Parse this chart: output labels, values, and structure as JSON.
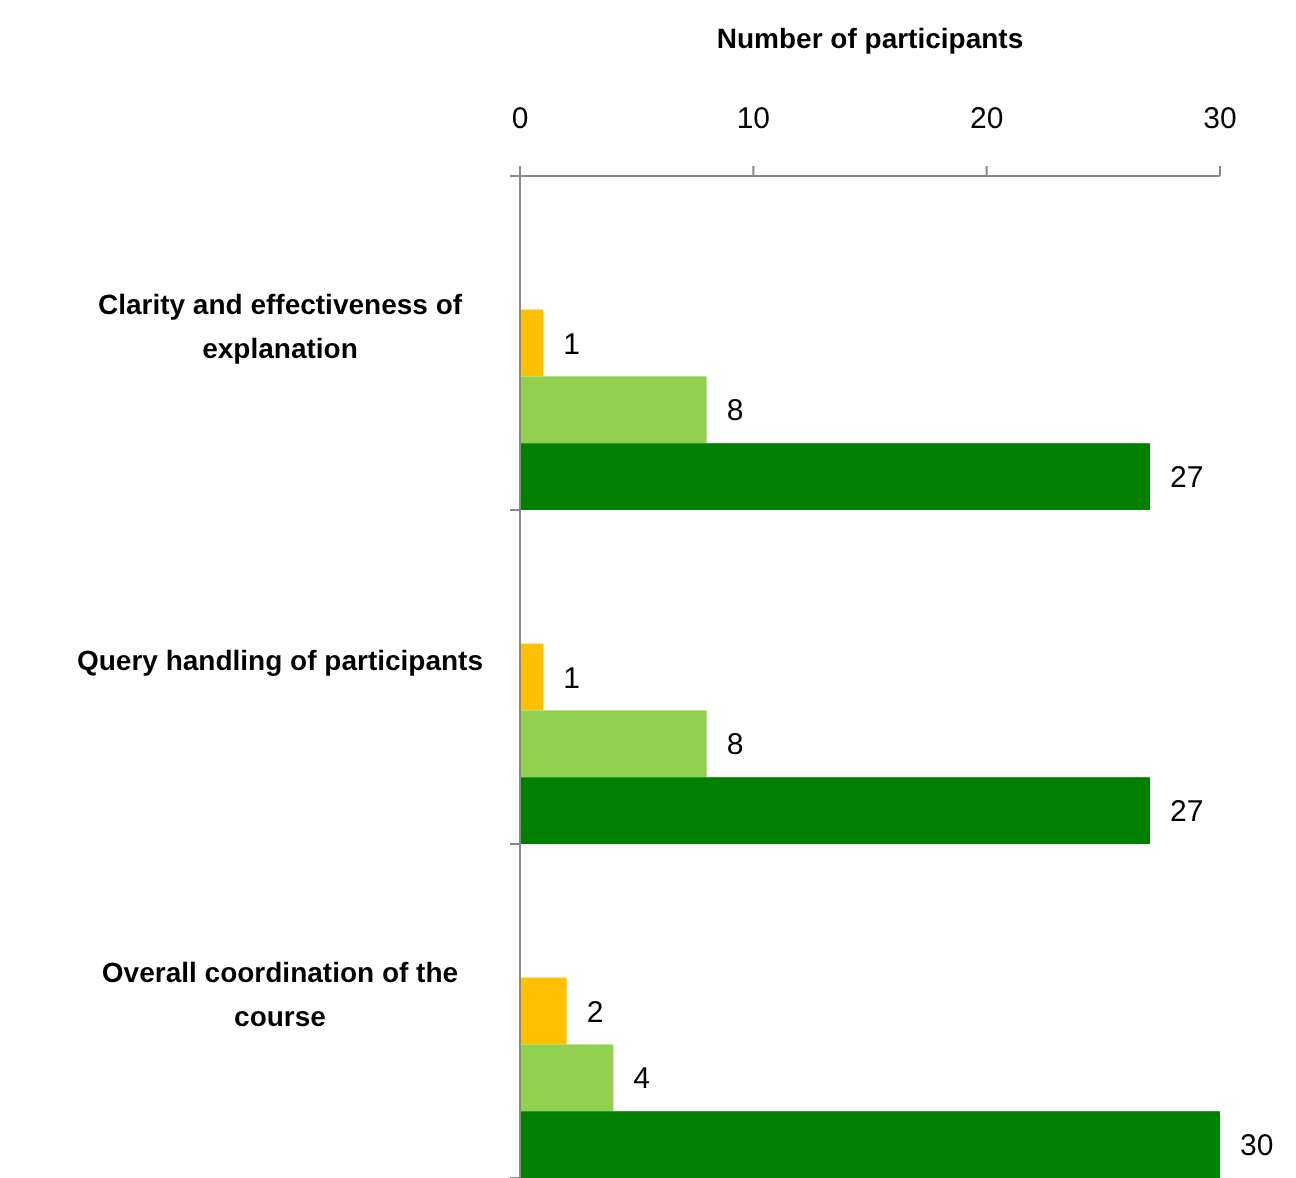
{
  "chart_data": {
    "type": "bar",
    "orientation": "horizontal",
    "xlabel": "Number of participants",
    "categories": [
      "Clarity and effectiveness of explanation",
      "Query handling of participants",
      "Overall coordination of the course"
    ],
    "series": [
      {
        "color": "#ffc000",
        "values": [
          1,
          1,
          2
        ]
      },
      {
        "color": "#92d050",
        "values": [
          8,
          8,
          4
        ]
      },
      {
        "color": "#008000",
        "values": [
          27,
          27,
          30
        ]
      }
    ],
    "xlim": [
      0,
      30
    ],
    "xticks": [
      0,
      10,
      20,
      30
    ],
    "data_labels": true,
    "grid": false
  }
}
